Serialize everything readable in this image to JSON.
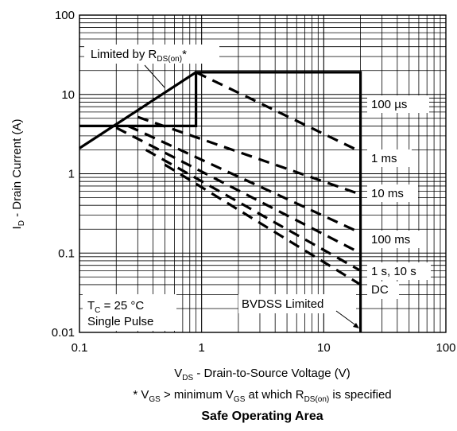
{
  "chart_data": {
    "type": "line",
    "title": "Safe Operating Area",
    "xscale": "log",
    "yscale": "log",
    "xlim": [
      0.1,
      100
    ],
    "ylim": [
      0.01,
      100
    ],
    "grid": true,
    "xlabel": {
      "main": "V",
      "sub": "DS",
      "rest": " - Drain-to-Source Voltage (V)"
    },
    "ylabel": {
      "main": "I",
      "sub": "D",
      "rest": " - Drain Current (A)"
    },
    "footnote": {
      "p1": "* V",
      "s1": "GS",
      "p2": " > minimum V",
      "s2": "GS",
      "p3": " at which R",
      "s3": "DS(on)",
      "p4": " is specified"
    },
    "x_ticks": [
      {
        "value": 0.1,
        "label": "0.1"
      },
      {
        "value": 1,
        "label": "1"
      },
      {
        "value": 10,
        "label": "10"
      },
      {
        "value": 100,
        "label": "100"
      }
    ],
    "y_ticks": [
      {
        "value": 0.01,
        "label": "0.01"
      },
      {
        "value": 0.1,
        "label": "0.1"
      },
      {
        "value": 1,
        "label": "1"
      },
      {
        "value": 10,
        "label": "10"
      },
      {
        "value": 100,
        "label": "100"
      }
    ],
    "boundary": {
      "name": "safe-operating-boundary",
      "x": [
        0.1,
        0.2,
        0.2,
        0.9,
        0.9,
        20,
        20
      ],
      "y": [
        4,
        4,
        4,
        4,
        19,
        19,
        0.01
      ]
    },
    "rds_on_limit": {
      "name": "rds-on-limit-line",
      "x": [
        0.1,
        0.9
      ],
      "y": [
        2.1,
        19
      ]
    },
    "series": [
      {
        "name": "100 µs",
        "x": [
          0.9,
          20
        ],
        "y": [
          19,
          1.9
        ]
      },
      {
        "name": "1 ms",
        "x": [
          0.3,
          20
        ],
        "y": [
          5.2,
          0.55
        ]
      },
      {
        "name": "10 ms",
        "x": [
          0.25,
          20
        ],
        "y": [
          4,
          0.18
        ]
      },
      {
        "name": "100 ms",
        "x": [
          0.2,
          20
        ],
        "y": [
          3.8,
          0.1
        ]
      },
      {
        "name": "1 s, 10 s",
        "x": [
          0.35,
          20
        ],
        "y": [
          2,
          0.06
        ]
      },
      {
        "name": "DC",
        "x": [
          0.5,
          20
        ],
        "y": [
          1.3,
          0.04
        ]
      }
    ],
    "annotations": {
      "rds_label": {
        "p1": "Limited by R",
        "sub": "DS(on)",
        "p2": "*"
      },
      "temp_label": {
        "p1": "T",
        "sub": "C",
        "p2": " = 25 °C",
        "line2": "Single Pulse"
      },
      "bvdss_label": "BVDSS Limited",
      "curve_labels": [
        "100 µs",
        "1 ms",
        "10 ms",
        "100 ms",
        "1 s, 10 s",
        "DC"
      ]
    }
  }
}
